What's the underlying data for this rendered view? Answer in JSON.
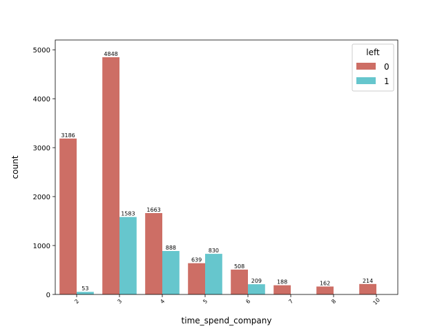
{
  "chart_data": {
    "type": "bar",
    "xlabel": "time_spend_company",
    "ylabel": "count",
    "categories": [
      "2",
      "3",
      "4",
      "5",
      "6",
      "7",
      "8",
      "10"
    ],
    "series": [
      {
        "name": "0",
        "color": "#cd6e65",
        "values": [
          3186,
          4848,
          1663,
          639,
          508,
          188,
          162,
          214
        ]
      },
      {
        "name": "1",
        "color": "#66c6cd",
        "values": [
          53,
          1583,
          888,
          830,
          209,
          null,
          null,
          null
        ]
      }
    ],
    "ylim": [
      0,
      5200
    ],
    "yticks": [
      0,
      1000,
      2000,
      3000,
      4000,
      5000
    ],
    "grid": false,
    "legend": {
      "title": "left",
      "placement": "top-right"
    }
  }
}
